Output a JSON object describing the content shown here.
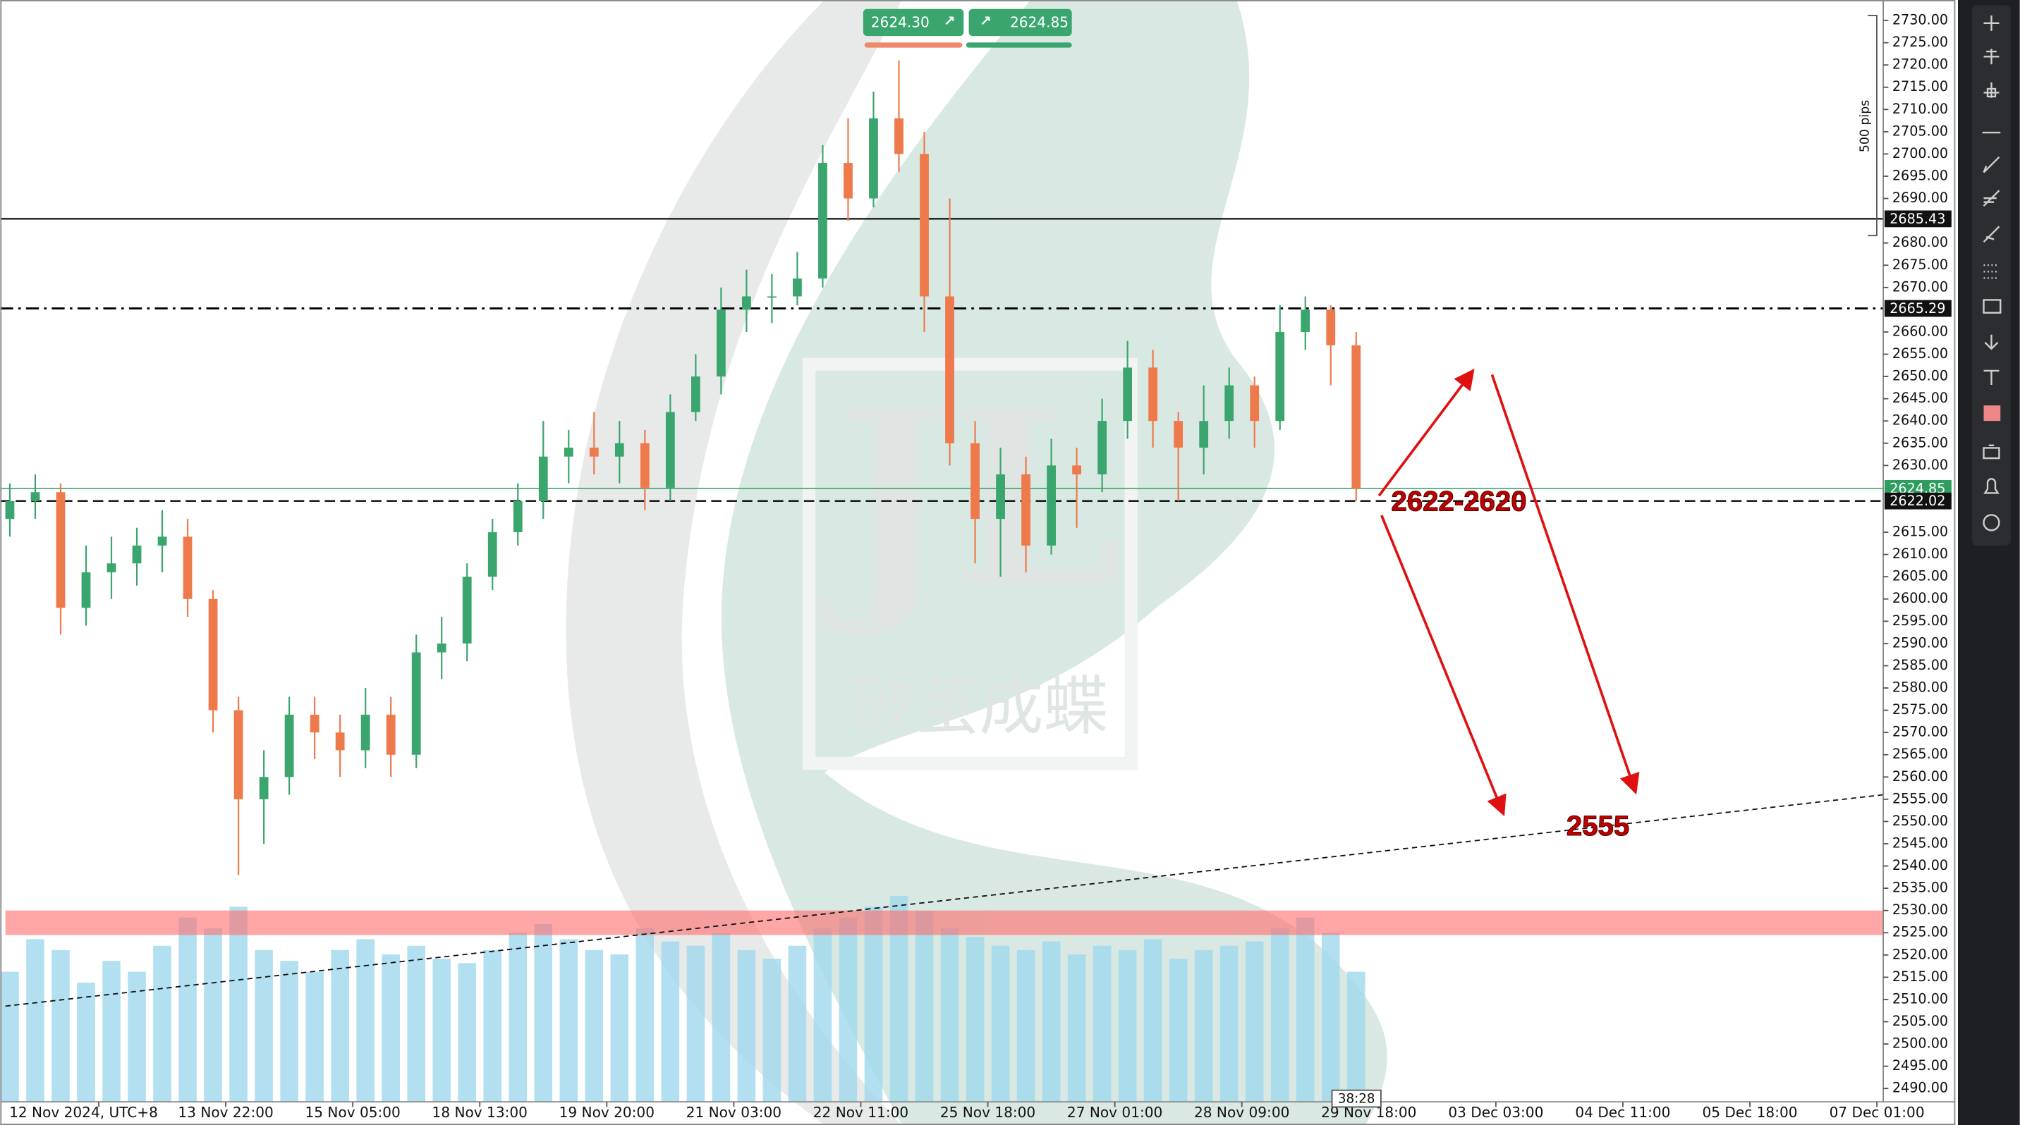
{
  "chart_data": {
    "type": "candlestick",
    "x": [
      -0.7,
      -0.5,
      -0.3,
      -0.1,
      0.1,
      0.3,
      0.5,
      0.7,
      0.9,
      1.1,
      1.3,
      1.5,
      1.7,
      1.9,
      2.1,
      2.3,
      2.5,
      2.7,
      2.9,
      3.1,
      3.3,
      3.5,
      3.7,
      3.9,
      4.1,
      4.3,
      4.5,
      4.7,
      4.9,
      5.1,
      5.3,
      5.5,
      5.7,
      5.9,
      6.1,
      6.3,
      6.5,
      6.7,
      6.9,
      7.1,
      7.3,
      7.5,
      7.7,
      7.9,
      8.1,
      8.3,
      8.5,
      8.7,
      8.9,
      9.1,
      9.3,
      9.5,
      9.7,
      9.9
    ],
    "open": [
      2618,
      2622,
      2624,
      2598,
      2606,
      2608,
      2612,
      2614,
      2600,
      2575,
      2555,
      2560,
      2574,
      2570,
      2566,
      2574,
      2565,
      2588,
      2590,
      2605,
      2615,
      2622,
      2632,
      2634,
      2632,
      2635,
      2625,
      2642,
      2650,
      2665,
      2668,
      2668,
      2672,
      2698,
      2690,
      2708,
      2700,
      2668,
      2635,
      2618,
      2628,
      2612,
      2630,
      2628,
      2640,
      2652,
      2640,
      2634,
      2640,
      2648,
      2640,
      2660,
      2665,
      2657
    ],
    "high": [
      2626,
      2628,
      2626,
      2612,
      2614,
      2616,
      2620,
      2618,
      2602,
      2578,
      2566,
      2578,
      2578,
      2574,
      2580,
      2578,
      2592,
      2596,
      2608,
      2618,
      2626,
      2640,
      2638,
      2642,
      2640,
      2638,
      2646,
      2655,
      2670,
      2674,
      2673,
      2678,
      2702,
      2708,
      2714,
      2721,
      2705,
      2690,
      2640,
      2634,
      2632,
      2636,
      2634,
      2645,
      2658,
      2656,
      2642,
      2648,
      2652,
      2650,
      2666,
      2668,
      2666,
      2660
    ],
    "low": [
      2614,
      2618,
      2592,
      2594,
      2600,
      2603,
      2606,
      2596,
      2570,
      2538,
      2545,
      2556,
      2564,
      2560,
      2562,
      2560,
      2562,
      2582,
      2586,
      2602,
      2612,
      2618,
      2626,
      2628,
      2626,
      2620,
      2622,
      2640,
      2646,
      2660,
      2662,
      2666,
      2670,
      2685,
      2688,
      2696,
      2660,
      2630,
      2608,
      2605,
      2606,
      2610,
      2616,
      2624,
      2636,
      2634,
      2622,
      2628,
      2636,
      2634,
      2638,
      2656,
      2648,
      2622
    ],
    "close": [
      2622,
      2624,
      2598,
      2606,
      2608,
      2612,
      2614,
      2600,
      2575,
      2555,
      2560,
      2574,
      2570,
      2566,
      2574,
      2565,
      2588,
      2590,
      2605,
      2615,
      2622,
      2632,
      2634,
      2632,
      2635,
      2625,
      2642,
      2650,
      2665,
      2668,
      2668,
      2672,
      2698,
      2690,
      2708,
      2700,
      2668,
      2635,
      2618,
      2628,
      2612,
      2630,
      2628,
      2640,
      2652,
      2640,
      2634,
      2640,
      2648,
      2640,
      2660,
      2665,
      2657,
      2624.85
    ],
    "volume": [
      60,
      75,
      70,
      55,
      65,
      60,
      72,
      85,
      80,
      90,
      70,
      65,
      60,
      70,
      75,
      68,
      72,
      66,
      64,
      70,
      78,
      82,
      75,
      70,
      68,
      80,
      74,
      72,
      78,
      70,
      66,
      72,
      80,
      85,
      90,
      95,
      88,
      80,
      76,
      72,
      70,
      74,
      68,
      72,
      70,
      75,
      66,
      70,
      72,
      74,
      80,
      85,
      78,
      60
    ],
    "up_color": "#3aa66e",
    "down_color": "#ee7a4c",
    "volume_color": "#9fd8ec",
    "xlim": [
      -0.735,
      14.05
    ],
    "xticks": [
      {
        "value": 0,
        "label": "12 Nov 2024, UTC+8"
      },
      {
        "value": 1,
        "label": "13 Nov 22:00"
      },
      {
        "value": 2,
        "label": "15 Nov 05:00"
      },
      {
        "value": 3,
        "label": "18 Nov 13:00"
      },
      {
        "value": 4,
        "label": "19 Nov 20:00"
      },
      {
        "value": 5,
        "label": "21 Nov 03:00"
      },
      {
        "value": 6,
        "label": "22 Nov 11:00"
      },
      {
        "value": 7,
        "label": "25 Nov 18:00"
      },
      {
        "value": 8,
        "label": "27 Nov 01:00"
      },
      {
        "value": 9,
        "label": "28 Nov 09:00"
      },
      {
        "value": 10,
        "label": "29 Nov 18:00"
      },
      {
        "value": 11,
        "label": "03 Dec 03:00"
      },
      {
        "value": 12,
        "label": "04 Dec 11:00"
      },
      {
        "value": 13,
        "label": "05 Dec 18:00"
      },
      {
        "value": 14,
        "label": "07 Dec 01:00"
      }
    ],
    "ylim": [
      2487,
      2734.6
    ],
    "yticks": [
      {
        "value": 2730,
        "label": "2730.00"
      },
      {
        "value": 2725,
        "label": "2725.00"
      },
      {
        "value": 2720,
        "label": "2720.00"
      },
      {
        "value": 2715,
        "label": "2715.00"
      },
      {
        "value": 2710,
        "label": "2710.00"
      },
      {
        "value": 2705,
        "label": "2705.00"
      },
      {
        "value": 2700,
        "label": "2700.00"
      },
      {
        "value": 2695,
        "label": "2695.00"
      },
      {
        "value": 2690,
        "label": "2690.00"
      },
      {
        "value": 2680,
        "label": "2680.00"
      },
      {
        "value": 2675,
        "label": "2675.00"
      },
      {
        "value": 2670,
        "label": "2670.00"
      },
      {
        "value": 2660,
        "label": "2660.00"
      },
      {
        "value": 2655,
        "label": "2655.00"
      },
      {
        "value": 2650,
        "label": "2650.00"
      },
      {
        "value": 2645,
        "label": "2645.00"
      },
      {
        "value": 2640,
        "label": "2640.00"
      },
      {
        "value": 2635,
        "label": "2635.00"
      },
      {
        "value": 2630,
        "label": "2630.00"
      },
      {
        "value": 2615,
        "label": "2615.00"
      },
      {
        "value": 2610,
        "label": "2610.00"
      },
      {
        "value": 2605,
        "label": "2605.00"
      },
      {
        "value": 2600,
        "label": "2600.00"
      },
      {
        "value": 2595,
        "label": "2595.00"
      },
      {
        "value": 2590,
        "label": "2590.00"
      },
      {
        "value": 2585,
        "label": "2585.00"
      },
      {
        "value": 2580,
        "label": "2580.00"
      },
      {
        "value": 2575,
        "label": "2575.00"
      },
      {
        "value": 2570,
        "label": "2570.00"
      },
      {
        "value": 2565,
        "label": "2565.00"
      },
      {
        "value": 2560,
        "label": "2560.00"
      },
      {
        "value": 2555,
        "label": "2555.00"
      },
      {
        "value": 2550,
        "label": "2550.00"
      },
      {
        "value": 2545,
        "label": "2545.00"
      },
      {
        "value": 2540,
        "label": "2540.00"
      },
      {
        "value": 2535,
        "label": "2535.00"
      },
      {
        "value": 2530,
        "label": "2530.00"
      },
      {
        "value": 2525,
        "label": "2525.00"
      },
      {
        "value": 2520,
        "label": "2520.00"
      },
      {
        "value": 2515,
        "label": "2515.00"
      },
      {
        "value": 2510,
        "label": "2510.00"
      },
      {
        "value": 2505,
        "label": "2505.00"
      },
      {
        "value": 2500,
        "label": "2500.00"
      },
      {
        "value": 2495,
        "label": "2495.00"
      },
      {
        "value": 2490,
        "label": "2490.00"
      }
    ],
    "levels": [
      {
        "value": 2685.43,
        "style": "solid",
        "color": "#000000"
      },
      {
        "value": 2665.29,
        "style": "dashdot",
        "color": "#000000"
      },
      {
        "value": 2624.85,
        "style": "thin",
        "color": "#2e9e5e"
      },
      {
        "value": 2622.02,
        "style": "dashed",
        "color": "#000000"
      }
    ],
    "zone": {
      "from": 2524.5,
      "to": 2530,
      "color": "#ff6b6b"
    },
    "trendline": {
      "x": [
        -0.735,
        14.05
      ],
      "y": [
        2508.5,
        2556
      ]
    },
    "arrows": [
      {
        "x": [
          10.08,
          10.82
        ],
        "y": [
          2623.2,
          2651.3
        ]
      },
      {
        "x": [
          10.97,
          12.1
        ],
        "y": [
          2650.4,
          2556.6
        ]
      },
      {
        "x": [
          10.1,
          11.06
        ],
        "y": [
          2618.8,
          2551.7
        ]
      }
    ],
    "annotations": [
      "2622-2620",
      "2555"
    ],
    "quote": {
      "sell": "2624.30",
      "buy": "2624.85"
    },
    "ruler": "500 pips",
    "timer": "38:28",
    "watermark": {
      "logo": "JL",
      "text": "破茧成蝶"
    }
  }
}
